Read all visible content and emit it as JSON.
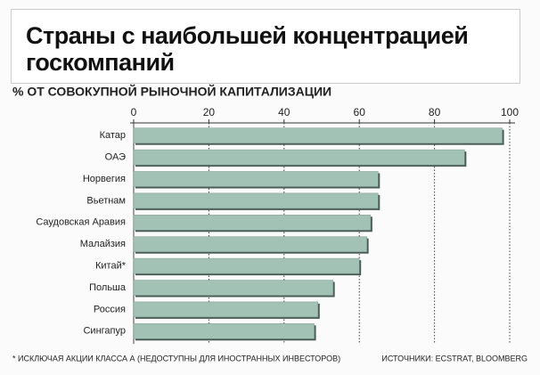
{
  "chart_data": {
    "type": "bar",
    "orientation": "horizontal",
    "title": "Страны с наибольшей концентрацией госкомпаний",
    "subtitle": "% ОТ СОВОКУПНОЙ РЫНОЧНОЙ КАПИТАЛИЗАЦИИ",
    "categories": [
      "Катар",
      "ОАЭ",
      "Норвегия",
      "Вьетнам",
      "Саудовская Аравия",
      "Малайзия",
      "Китай*",
      "Польша",
      "Россия",
      "Сингапур"
    ],
    "values": [
      98,
      88,
      65,
      65,
      63,
      62,
      60,
      53,
      49,
      48
    ],
    "color": "#a3c2b6",
    "xlim": [
      0,
      100
    ],
    "xticks": [
      0,
      20,
      40,
      60,
      80,
      100
    ],
    "grid": true,
    "footnote": "* ИСКЛЮЧАЯ АКЦИИ КЛАССА А (НЕДОСТУПНЫ ДЛЯ ИНОСТРАННЫХ ИНВЕСТОРОВ)",
    "source": "ИСТОЧНИКИ: ECSTRAT, BLOOMBERG"
  }
}
